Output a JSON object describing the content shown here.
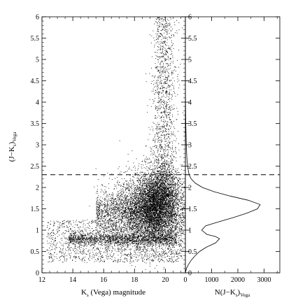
{
  "chart_data": [
    {
      "panel": "left",
      "type": "scatter",
      "xlabel": {
        "main": "K",
        "sub": "s",
        "rest": " (Vega) magnitude"
      },
      "ylabel": {
        "main": "(J−K",
        "sub": "s",
        "rest": ")",
        "sub2": "Vega"
      },
      "xlim": [
        12,
        21.3
      ],
      "ylim": [
        0,
        6
      ],
      "x_ticks": [
        12,
        14,
        16,
        18,
        20
      ],
      "y_ticks": [
        0,
        0.5,
        1,
        1.5,
        2,
        2.5,
        3,
        3.5,
        4,
        4.5,
        5,
        5.5,
        6
      ],
      "threshold_line": {
        "y": 2.3,
        "style": "dashed"
      },
      "density_features": [
        {
          "description_key": "main_branch",
          "x_center": 19.3,
          "y_center": 1.5
        },
        {
          "description_key": "blue_sequence",
          "x_center": 15.5,
          "y_center": 0.8
        },
        {
          "description_key": "red_plume",
          "x_center": 17.5,
          "y_center": 1.5
        }
      ]
    },
    {
      "panel": "right",
      "type": "line",
      "xlabel": {
        "main": "N(J−K",
        "sub": "s",
        "rest": ")",
        "sub2": "Vega"
      },
      "xlim": [
        0,
        3600
      ],
      "ylim": [
        0,
        6
      ],
      "x_ticks": [
        0,
        1000,
        2000,
        3000
      ],
      "y_ticks": [
        0,
        0.5,
        1,
        1.5,
        2,
        2.5,
        3,
        3.5,
        4,
        4.5,
        5,
        5.5,
        6
      ],
      "threshold_line": {
        "y": 2.3,
        "style": "dashed"
      },
      "histogram": [
        {
          "y": 0.0,
          "n": 0
        },
        {
          "y": 0.1,
          "n": 40
        },
        {
          "y": 0.2,
          "n": 120
        },
        {
          "y": 0.3,
          "n": 230
        },
        {
          "y": 0.4,
          "n": 370
        },
        {
          "y": 0.5,
          "n": 540
        },
        {
          "y": 0.6,
          "n": 800
        },
        {
          "y": 0.7,
          "n": 1150
        },
        {
          "y": 0.8,
          "n": 1300
        },
        {
          "y": 0.85,
          "n": 1150
        },
        {
          "y": 0.9,
          "n": 820
        },
        {
          "y": 1.0,
          "n": 620
        },
        {
          "y": 1.1,
          "n": 770
        },
        {
          "y": 1.2,
          "n": 1300
        },
        {
          "y": 1.3,
          "n": 1850
        },
        {
          "y": 1.4,
          "n": 2350
        },
        {
          "y": 1.5,
          "n": 2750
        },
        {
          "y": 1.6,
          "n": 2850
        },
        {
          "y": 1.7,
          "n": 2400
        },
        {
          "y": 1.8,
          "n": 1700
        },
        {
          "y": 1.9,
          "n": 1100
        },
        {
          "y": 2.0,
          "n": 650
        },
        {
          "y": 2.1,
          "n": 380
        },
        {
          "y": 2.2,
          "n": 220
        },
        {
          "y": 2.3,
          "n": 140
        },
        {
          "y": 2.5,
          "n": 80
        },
        {
          "y": 2.7,
          "n": 55
        },
        {
          "y": 3.0,
          "n": 35
        },
        {
          "y": 3.5,
          "n": 15
        },
        {
          "y": 4.0,
          "n": 5
        },
        {
          "y": 4.5,
          "n": 0
        },
        {
          "y": 6.0,
          "n": 0
        }
      ]
    }
  ]
}
